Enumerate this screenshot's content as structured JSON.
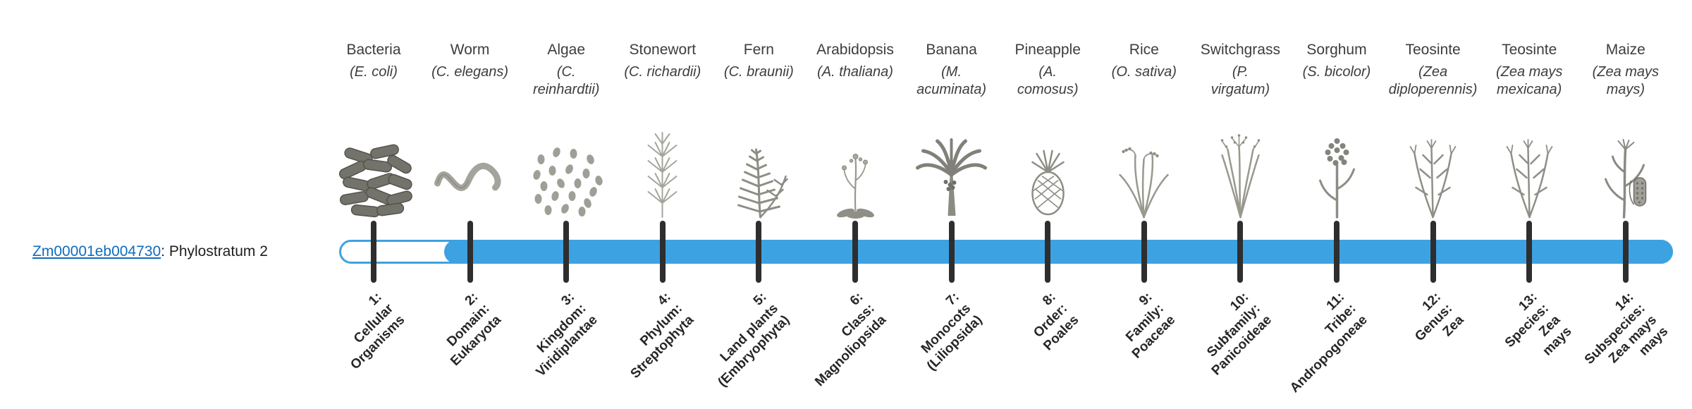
{
  "gene": {
    "id": "Zm00001eb004730",
    "suffix": ": Phylostratum 2"
  },
  "colors": {
    "bar_fill": "#3da2e2",
    "link": "#0f6cbd",
    "tick": "#2e2e2e"
  },
  "organisms": [
    {
      "name": "Bacteria",
      "sci": "(E. coli)",
      "icon": "bacteria-icon"
    },
    {
      "name": "Worm",
      "sci": "(C. elegans)",
      "icon": "worm-icon"
    },
    {
      "name": "Algae",
      "sci": "(C.\nreinhardtii)",
      "icon": "algae-icon"
    },
    {
      "name": "Stonewort",
      "sci": "(C. richardii)",
      "icon": "stonewort-icon"
    },
    {
      "name": "Fern",
      "sci": "(C. braunii)",
      "icon": "fern-icon"
    },
    {
      "name": "Arabidopsis",
      "sci": "(A. thaliana)",
      "icon": "arabidopsis-icon"
    },
    {
      "name": "Banana",
      "sci": "(M.\nacuminata)",
      "icon": "banana-icon"
    },
    {
      "name": "Pineapple",
      "sci": "(A.\ncomosus)",
      "icon": "pineapple-icon"
    },
    {
      "name": "Rice",
      "sci": "(O. sativa)",
      "icon": "rice-icon"
    },
    {
      "name": "Switchgrass",
      "sci": "(P.\nvirgatum)",
      "icon": "switchgrass-icon"
    },
    {
      "name": "Sorghum",
      "sci": "(S. bicolor)",
      "icon": "sorghum-icon"
    },
    {
      "name": "Teosinte",
      "sci": "(Zea\ndiploperennis)",
      "icon": "teosinte-icon"
    },
    {
      "name": "Teosinte",
      "sci": "(Zea mays\nmexicana)",
      "icon": "teosinte-icon"
    },
    {
      "name": "Maize",
      "sci": "(Zea mays\nmays)",
      "icon": "maize-icon"
    }
  ],
  "phylostrata": [
    "1:\nCellular\nOrganisms",
    "2:\nDomain:\nEukaryota",
    "3:\nKingdom:\nViridiplantae",
    "4:\nPhylum:\nStreptophyta",
    "5:\nLand plants\n(Embryophyta)",
    "6:\nClass:\nMagnoliopsida",
    "7:\nMonocots\n(Liliopsida)",
    "8:\nOrder:\nPoales",
    "9:\nFamily:\nPoaceae",
    "10:\nSubfamily:\nPanicoideae",
    "11:\nTribe:\nAndropogoneae",
    "12:\nGenus:\nZea",
    "13:\nSpecies:\nZea\nmays",
    "14:\nSubspecies:\nZea mays\nmays"
  ]
}
